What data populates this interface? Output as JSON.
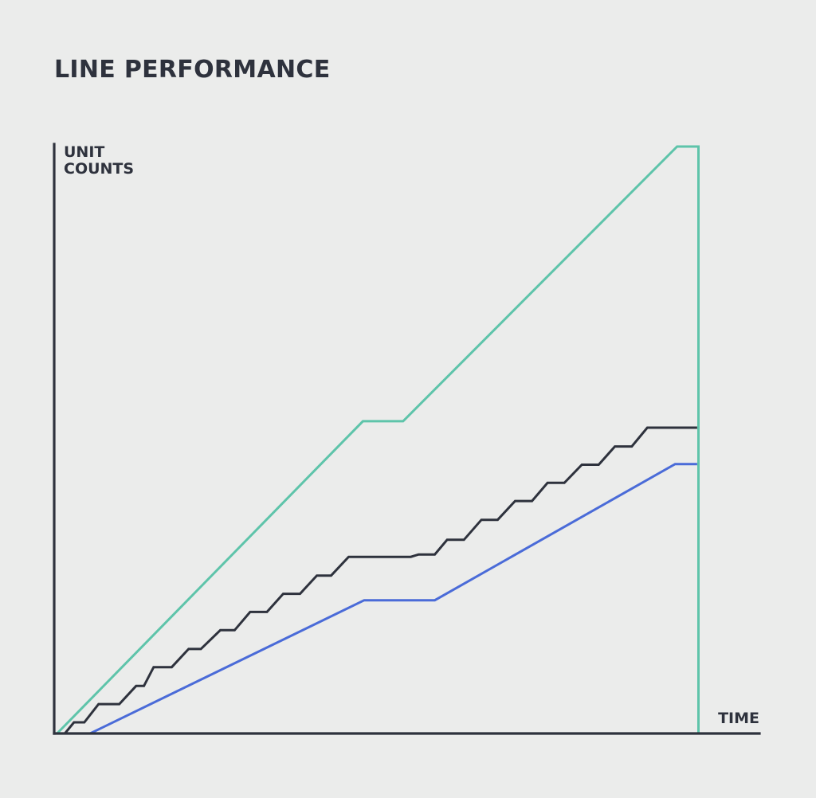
{
  "chart_data": {
    "type": "line",
    "title": "LINE PERFORMANCE",
    "xlabel": "TIME",
    "ylabel": [
      "UNIT",
      "COUNTS"
    ],
    "xlim": [
      0,
      100
    ],
    "ylim": [
      0,
      100
    ],
    "grid": false,
    "legend": "none",
    "colors": {
      "axis": "#2e323d",
      "background": "#ebeceb"
    },
    "series": [
      {
        "color": "#5ec4aa",
        "x": [
          0.2,
          47.4,
          53.6,
          95.9,
          99.2,
          99.2
        ],
        "y": [
          0,
          53.2,
          53.2,
          100,
          100,
          0
        ]
      },
      {
        "color": "#2e323d",
        "x": [
          1.4,
          2.8,
          4.4,
          6.6,
          9.8,
          12.4,
          13.6,
          15.1,
          17.9,
          20.5,
          22.4,
          25.4,
          27.6,
          30.0,
          32.6,
          35.1,
          37.7,
          40.3,
          42.5,
          45.2,
          47.6,
          54.8,
          56.0,
          58.5,
          60.4,
          63.0,
          65.7,
          68.2,
          70.9,
          73.5,
          75.9,
          78.5,
          81.2,
          83.8,
          86.3,
          88.9,
          91.3,
          93.9,
          96.5,
          99.0
        ],
        "y": [
          0,
          1.9,
          1.9,
          5.0,
          5.0,
          8.1,
          8.1,
          11.3,
          11.3,
          14.4,
          14.4,
          17.6,
          17.6,
          20.7,
          20.7,
          23.8,
          23.8,
          26.9,
          26.9,
          30.1,
          30.1,
          30.1,
          30.5,
          30.5,
          33.0,
          33.0,
          36.4,
          36.4,
          39.6,
          39.6,
          42.7,
          42.7,
          45.8,
          45.8,
          48.9,
          48.9,
          52.1,
          52.1,
          52.1,
          52.1
        ]
      },
      {
        "color": "#4a6bd8",
        "x": [
          5.3,
          47.6,
          58.5,
          95.6,
          99.0
        ],
        "y": [
          0,
          22.7,
          22.7,
          45.9,
          45.9
        ]
      }
    ]
  }
}
